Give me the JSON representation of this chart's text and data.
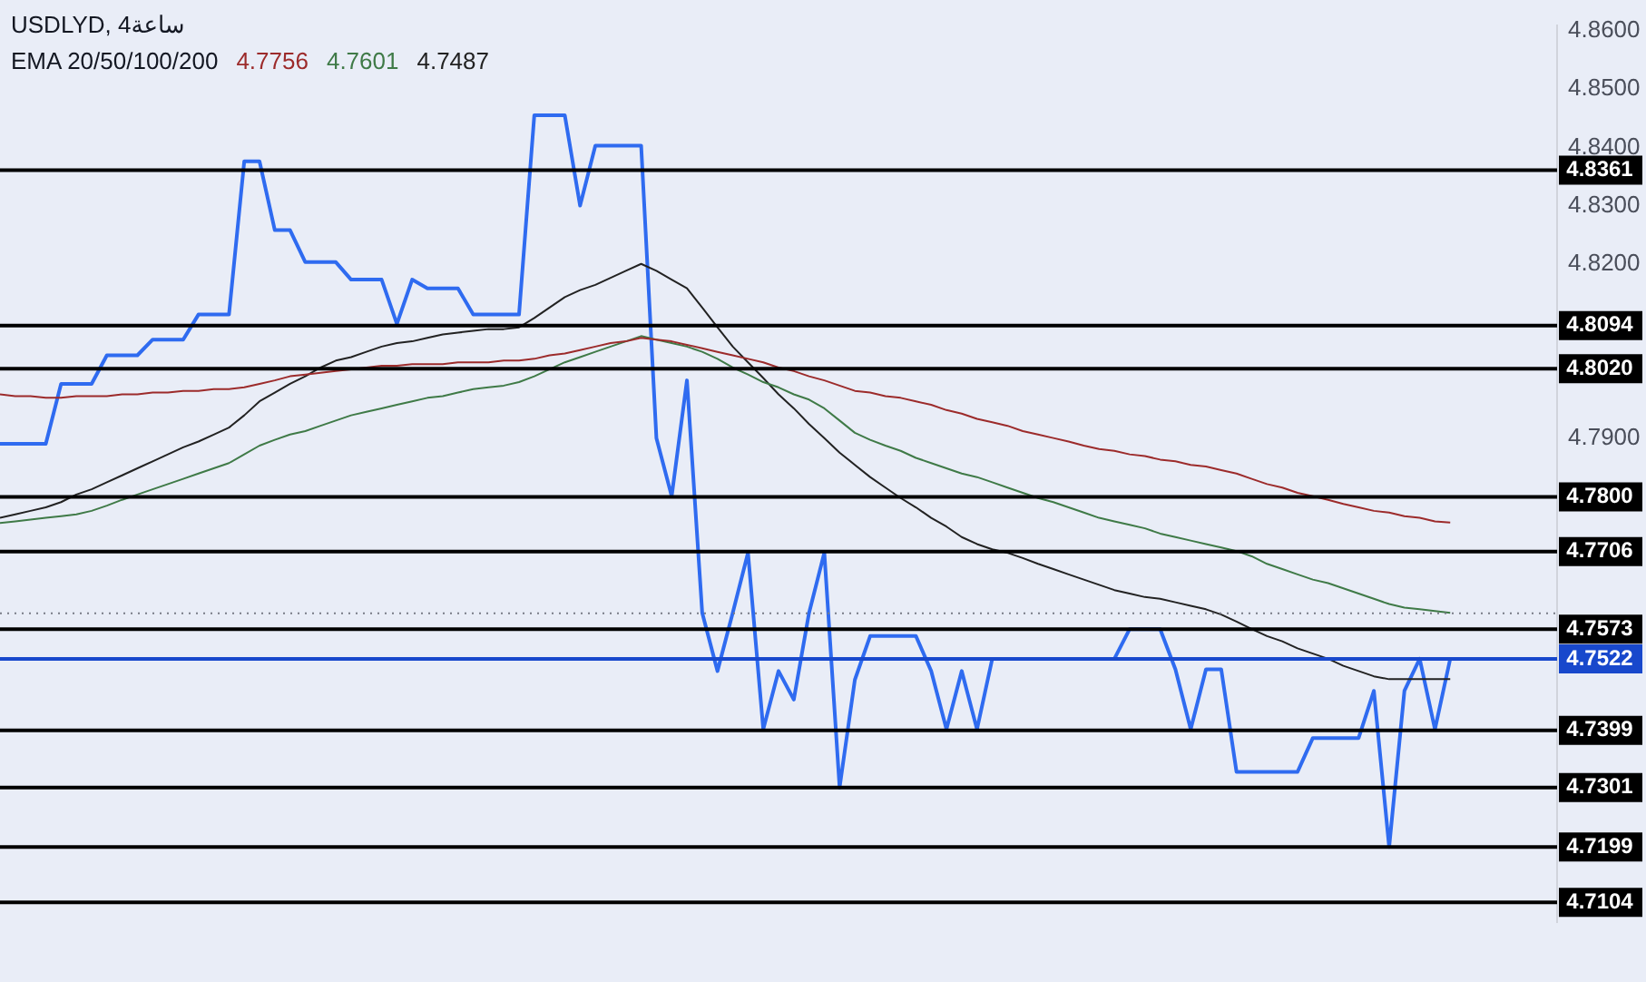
{
  "chart_data": {
    "type": "line",
    "title": "USDLYD, 4ساعة",
    "subtitle": "EMA 20/50/100/200",
    "categories": [
      null,
      null,
      null,
      null,
      null,
      null,
      null,
      null,
      null,
      null,
      null,
      null,
      null,
      null,
      null,
      null,
      null,
      null,
      null,
      null,
      null,
      null,
      null,
      null,
      null,
      null,
      null,
      null,
      null,
      null,
      null,
      null,
      null,
      null,
      null,
      null,
      null,
      null,
      null,
      null,
      null,
      null,
      null,
      null,
      null,
      null,
      null,
      null,
      null,
      null,
      null,
      null,
      null,
      null,
      null,
      null,
      null,
      null,
      null,
      null,
      null,
      null,
      null,
      null,
      null,
      null,
      null,
      null,
      null,
      null,
      null,
      null,
      null,
      null,
      null,
      null,
      null,
      null,
      null,
      null,
      null,
      null,
      null,
      null,
      null,
      null,
      null,
      null,
      null,
      null,
      null,
      null,
      null,
      null,
      null,
      null,
      null,
      null,
      null,
      null,
      null,
      null,
      null
    ],
    "series": [
      {
        "color": "#9c2b2b",
        "name": "4.7756",
        "values": [
          4.7976,
          4.7973,
          4.7973,
          4.797,
          4.797,
          4.7973,
          4.7973,
          4.7973,
          4.7976,
          4.7976,
          4.7979,
          4.7979,
          4.7982,
          4.7982,
          4.7985,
          4.7985,
          4.7988,
          4.7994,
          4.8,
          4.8007,
          4.801,
          4.8013,
          4.8016,
          4.8019,
          4.8022,
          4.8025,
          4.8025,
          4.8028,
          4.8028,
          4.8028,
          4.8031,
          4.8031,
          4.8031,
          4.8034,
          4.8034,
          4.8037,
          4.8043,
          4.8046,
          4.8052,
          4.8058,
          4.8064,
          4.8067,
          4.8073,
          4.807,
          4.8067,
          4.8061,
          4.8055,
          4.8049,
          4.8043,
          4.8037,
          4.8031,
          4.8022,
          4.8016,
          4.8007,
          4.8,
          4.7991,
          4.7982,
          4.7979,
          4.7973,
          4.797,
          4.7964,
          4.7958,
          4.7949,
          4.7943,
          4.7934,
          4.7928,
          4.7922,
          4.7913,
          4.7907,
          4.7901,
          4.7895,
          4.7888,
          4.7882,
          4.7879,
          4.7873,
          4.787,
          4.7864,
          4.7861,
          4.7855,
          4.7852,
          4.7846,
          4.784,
          4.7831,
          4.7822,
          4.7816,
          4.7807,
          4.7801,
          4.7795,
          4.7788,
          4.7782,
          4.7776,
          4.7773,
          4.7767,
          4.7764,
          4.7758,
          4.7756,
          null,
          null,
          null,
          null,
          null,
          null,
          null
        ]
      },
      {
        "color": "#3f7a47",
        "name": "4.7601",
        "values": [
          4.7755,
          4.7758,
          4.7761,
          4.7764,
          4.7767,
          4.777,
          4.7776,
          4.7785,
          4.7795,
          4.7804,
          4.7813,
          4.7822,
          4.7831,
          4.784,
          4.7849,
          4.7858,
          4.7873,
          4.7888,
          4.7898,
          4.7907,
          4.7913,
          4.7922,
          4.7931,
          4.794,
          4.7946,
          4.7952,
          4.7958,
          4.7964,
          4.797,
          4.7973,
          4.7979,
          4.7985,
          4.7988,
          4.7991,
          4.7997,
          4.8007,
          4.8019,
          4.8031,
          4.804,
          4.8049,
          4.8058,
          4.8067,
          4.8076,
          4.807,
          4.8064,
          4.8058,
          4.8049,
          4.8037,
          4.8022,
          4.801,
          4.7997,
          4.7988,
          4.7976,
          4.7967,
          4.7952,
          4.7931,
          4.791,
          4.7898,
          4.7888,
          4.7879,
          4.7867,
          4.7858,
          4.7849,
          4.784,
          4.7834,
          4.7825,
          4.7816,
          4.7807,
          4.7798,
          4.7791,
          4.7782,
          4.7773,
          4.7764,
          4.7758,
          4.7752,
          4.7746,
          4.7737,
          4.7731,
          4.7725,
          4.7719,
          4.7713,
          4.7707,
          4.7698,
          4.7685,
          4.7676,
          4.7667,
          4.7658,
          4.7652,
          4.7643,
          4.7634,
          4.7625,
          4.7616,
          4.761,
          4.7607,
          4.7604,
          4.7601,
          null,
          null,
          null,
          null,
          null,
          null,
          null
        ]
      },
      {
        "color": "#222222",
        "name": "4.7487",
        "values": [
          4.7764,
          4.777,
          4.7776,
          4.7782,
          4.7791,
          4.7804,
          4.7813,
          4.7825,
          4.7837,
          4.7849,
          4.7861,
          4.7873,
          4.7885,
          4.7895,
          4.7907,
          4.7919,
          4.794,
          4.7964,
          4.7979,
          4.7994,
          4.8007,
          4.8022,
          4.8034,
          4.804,
          4.8049,
          4.8058,
          4.8064,
          4.8067,
          4.8073,
          4.8079,
          4.8082,
          4.8085,
          4.8088,
          4.8088,
          4.8091,
          4.8107,
          4.8125,
          4.8143,
          4.8155,
          4.8164,
          4.8176,
          4.8188,
          4.82,
          4.8188,
          4.8173,
          4.8158,
          4.8125,
          4.8091,
          4.8058,
          4.8031,
          4.8004,
          4.7976,
          4.7952,
          4.7925,
          4.7901,
          4.7876,
          4.7855,
          4.7834,
          4.7816,
          4.7798,
          4.7782,
          4.7764,
          4.7749,
          4.7731,
          4.7719,
          4.771,
          4.7704,
          4.7695,
          4.7685,
          4.7676,
          4.7667,
          4.7658,
          4.7649,
          4.764,
          4.7634,
          4.7628,
          4.7625,
          4.7619,
          4.7613,
          4.7607,
          4.7598,
          4.7586,
          4.7573,
          4.7561,
          4.7552,
          4.754,
          4.7531,
          4.7522,
          4.751,
          4.7501,
          4.7492,
          4.7487,
          4.7487,
          4.7487,
          4.7487,
          4.7487,
          null,
          null,
          null,
          null,
          null,
          null,
          null
        ]
      },
      {
        "color": "#2f6bf0",
        "values": [
          4.7891,
          4.7891,
          4.7891,
          4.7891,
          4.7994,
          4.7994,
          4.7994,
          4.8043,
          4.8043,
          4.8043,
          4.807,
          4.807,
          4.807,
          4.8113,
          4.8113,
          4.8113,
          4.8376,
          4.8376,
          4.8258,
          4.8258,
          4.8203,
          4.8203,
          4.8203,
          4.8173,
          4.8173,
          4.8173,
          4.8097,
          4.8173,
          4.8158,
          4.8158,
          4.8158,
          4.8113,
          4.8113,
          4.8113,
          4.8113,
          4.8455,
          4.8455,
          4.8455,
          4.83,
          4.8403,
          4.8403,
          4.8403,
          4.8403,
          4.7901,
          4.7801,
          4.8,
          4.7601,
          4.7501,
          4.7601,
          4.7704,
          4.7401,
          4.7501,
          4.7452,
          4.7601,
          4.7704,
          4.7301,
          4.7486,
          4.7561,
          4.7561,
          4.7561,
          4.7561,
          4.7501,
          4.7401,
          4.7501,
          4.7401,
          4.7522,
          4.7522,
          4.7522,
          4.7522,
          4.7522,
          4.7522,
          4.7522,
          4.7522,
          4.7522,
          4.7573,
          4.7573,
          4.7573,
          4.7504,
          4.7401,
          4.7504,
          4.7504,
          4.7328,
          4.7328,
          4.7328,
          4.7328,
          4.7328,
          4.7386,
          4.7386,
          4.7386,
          4.7386,
          4.7467,
          4.7199,
          4.7467,
          4.7522,
          4.7401,
          4.7522,
          null,
          null,
          null,
          null,
          null,
          null,
          null
        ]
      }
    ],
    "ylim": [
      4.707,
      4.861
    ],
    "yticks": [
      {
        "value": 4.86,
        "label": "4.8600"
      },
      {
        "value": 4.85,
        "label": "4.8500"
      },
      {
        "value": 4.84,
        "label": "4.8400"
      },
      {
        "value": 4.83,
        "label": "4.8300"
      },
      {
        "value": 4.82,
        "label": "4.8200"
      },
      {
        "value": 4.79,
        "label": "4.7900"
      }
    ],
    "ref_lines": [
      {
        "axis": "y",
        "value": 4.8361,
        "label": "4.8361"
      },
      {
        "axis": "y",
        "value": 4.8094,
        "label": "4.8094"
      },
      {
        "axis": "y",
        "value": 4.802,
        "label": "4.8020"
      },
      {
        "axis": "y",
        "value": 4.78,
        "label": "4.7800"
      },
      {
        "axis": "y",
        "value": 4.7706,
        "label": "4.7706"
      },
      {
        "axis": "y",
        "value": 4.76,
        "color": "#787b86",
        "line_style": "dotted"
      },
      {
        "axis": "y",
        "value": 4.7573,
        "label": "4.7573"
      },
      {
        "axis": "y",
        "value": 4.7522,
        "label": "4.7522",
        "color": "#1848cc"
      },
      {
        "axis": "y",
        "value": 4.7399,
        "label": "4.7399"
      },
      {
        "axis": "y",
        "value": 4.7301,
        "label": "4.7301"
      },
      {
        "axis": "y",
        "value": 4.7199,
        "label": "4.7199"
      },
      {
        "axis": "y",
        "value": 4.7104,
        "label": "4.7104"
      }
    ],
    "grid": false,
    "marker": "none",
    "line_style": "solid",
    "tick_labels": "y"
  }
}
